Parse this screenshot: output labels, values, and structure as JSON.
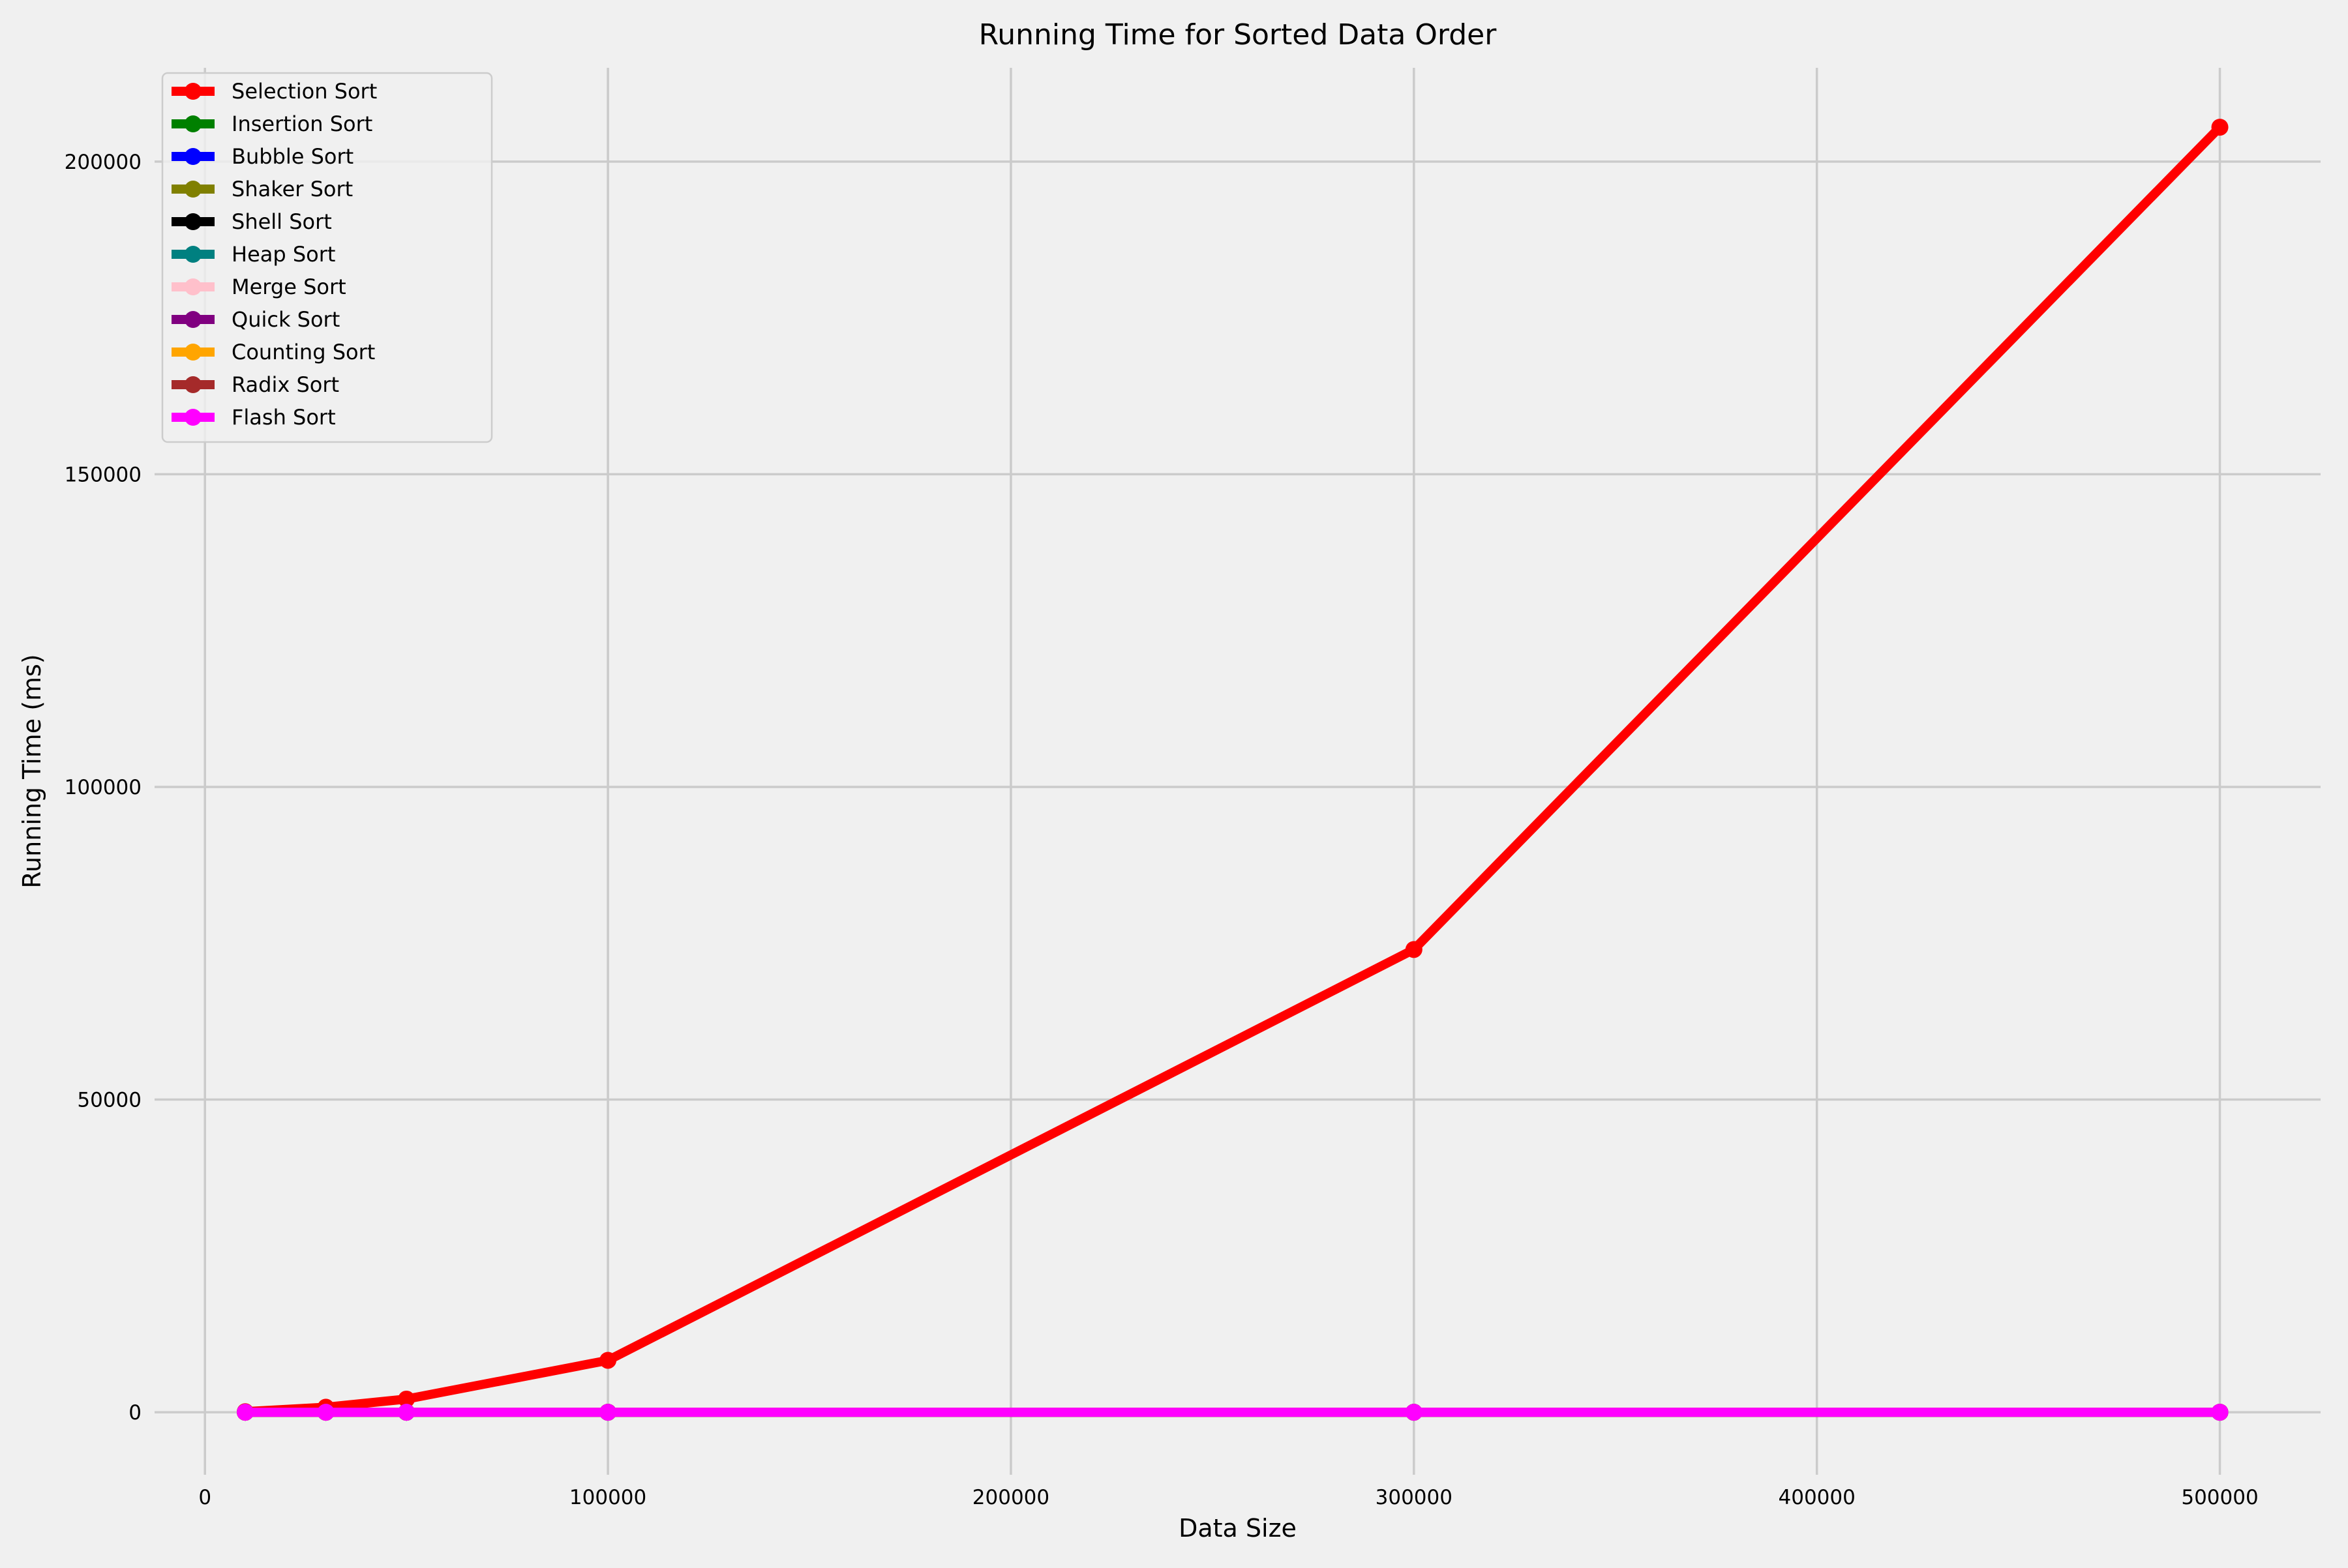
{
  "chart_data": {
    "type": "line",
    "title": "Running Time for Sorted Data Order",
    "xlabel": "Data Size",
    "ylabel": "Running Time (ms)",
    "xlim": [
      -12500,
      525000
    ],
    "ylim": [
      -10000,
      215000
    ],
    "xticks": [
      0,
      100000,
      200000,
      300000,
      400000,
      500000
    ],
    "yticks": [
      0,
      50000,
      100000,
      150000,
      200000
    ],
    "grid": true,
    "legend_position": "top-left",
    "x": [
      10000,
      30000,
      50000,
      100000,
      300000,
      500000
    ],
    "series": [
      {
        "name": "Selection Sort",
        "color": "#ff0000",
        "values": [
          90,
          800,
          2100,
          8300,
          74000,
          205500
        ]
      },
      {
        "name": "Insertion Sort",
        "color": "#008000",
        "values": [
          0,
          0,
          0,
          0,
          0,
          0
        ]
      },
      {
        "name": "Bubble Sort",
        "color": "#0000ff",
        "values": [
          0,
          0,
          0,
          0,
          0,
          0
        ]
      },
      {
        "name": "Shaker Sort",
        "color": "#808000",
        "values": [
          0,
          0,
          0,
          0,
          0,
          0
        ]
      },
      {
        "name": "Shell Sort",
        "color": "#000000",
        "values": [
          0,
          0,
          0,
          0,
          0,
          0
        ]
      },
      {
        "name": "Heap Sort",
        "color": "#008080",
        "values": [
          0,
          0,
          0,
          0,
          0,
          0
        ]
      },
      {
        "name": "Merge Sort",
        "color": "#ffc0cb",
        "values": [
          0,
          0,
          0,
          0,
          0,
          0
        ]
      },
      {
        "name": "Quick Sort",
        "color": "#800080",
        "values": [
          0,
          0,
          0,
          0,
          0,
          0
        ]
      },
      {
        "name": "Counting Sort",
        "color": "#ffa500",
        "values": [
          0,
          0,
          0,
          0,
          0,
          0
        ]
      },
      {
        "name": "Radix Sort",
        "color": "#a52a2a",
        "values": [
          0,
          0,
          0,
          0,
          0,
          0
        ]
      },
      {
        "name": "Flash Sort",
        "color": "#ff00ff",
        "values": [
          0,
          0,
          0,
          0,
          0,
          0
        ]
      }
    ]
  }
}
